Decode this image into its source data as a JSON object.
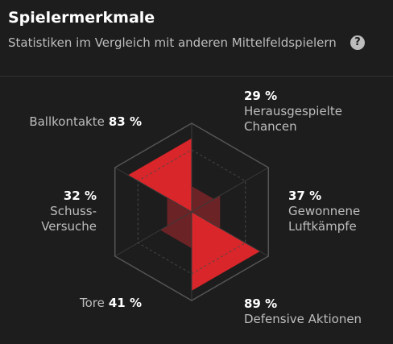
{
  "header": {
    "title": "Spielermerkmale",
    "subtitle": "Statistiken im Vergleich mit anderen Mittelfeldspielern",
    "help": "?"
  },
  "chart_data": {
    "type": "radar",
    "categories": [
      "Ballkontakte",
      "Herausgespielte Chancen",
      "Gewonnene Luftkämpfe",
      "Defensive Aktionen",
      "Tore",
      "Schuss-Versuche"
    ],
    "values": [
      83,
      29,
      37,
      89,
      41,
      32
    ],
    "value_labels": [
      "83 %",
      "29 %",
      "37 %",
      "89 %",
      "41 %",
      "32 %"
    ],
    "colors": [
      "#d8262a",
      "#6b2326",
      "#6b2326",
      "#d8262a",
      "#6b2326",
      "#6b2326"
    ],
    "rlim": [
      0,
      100
    ],
    "rticks": [
      70,
      100
    ]
  }
}
